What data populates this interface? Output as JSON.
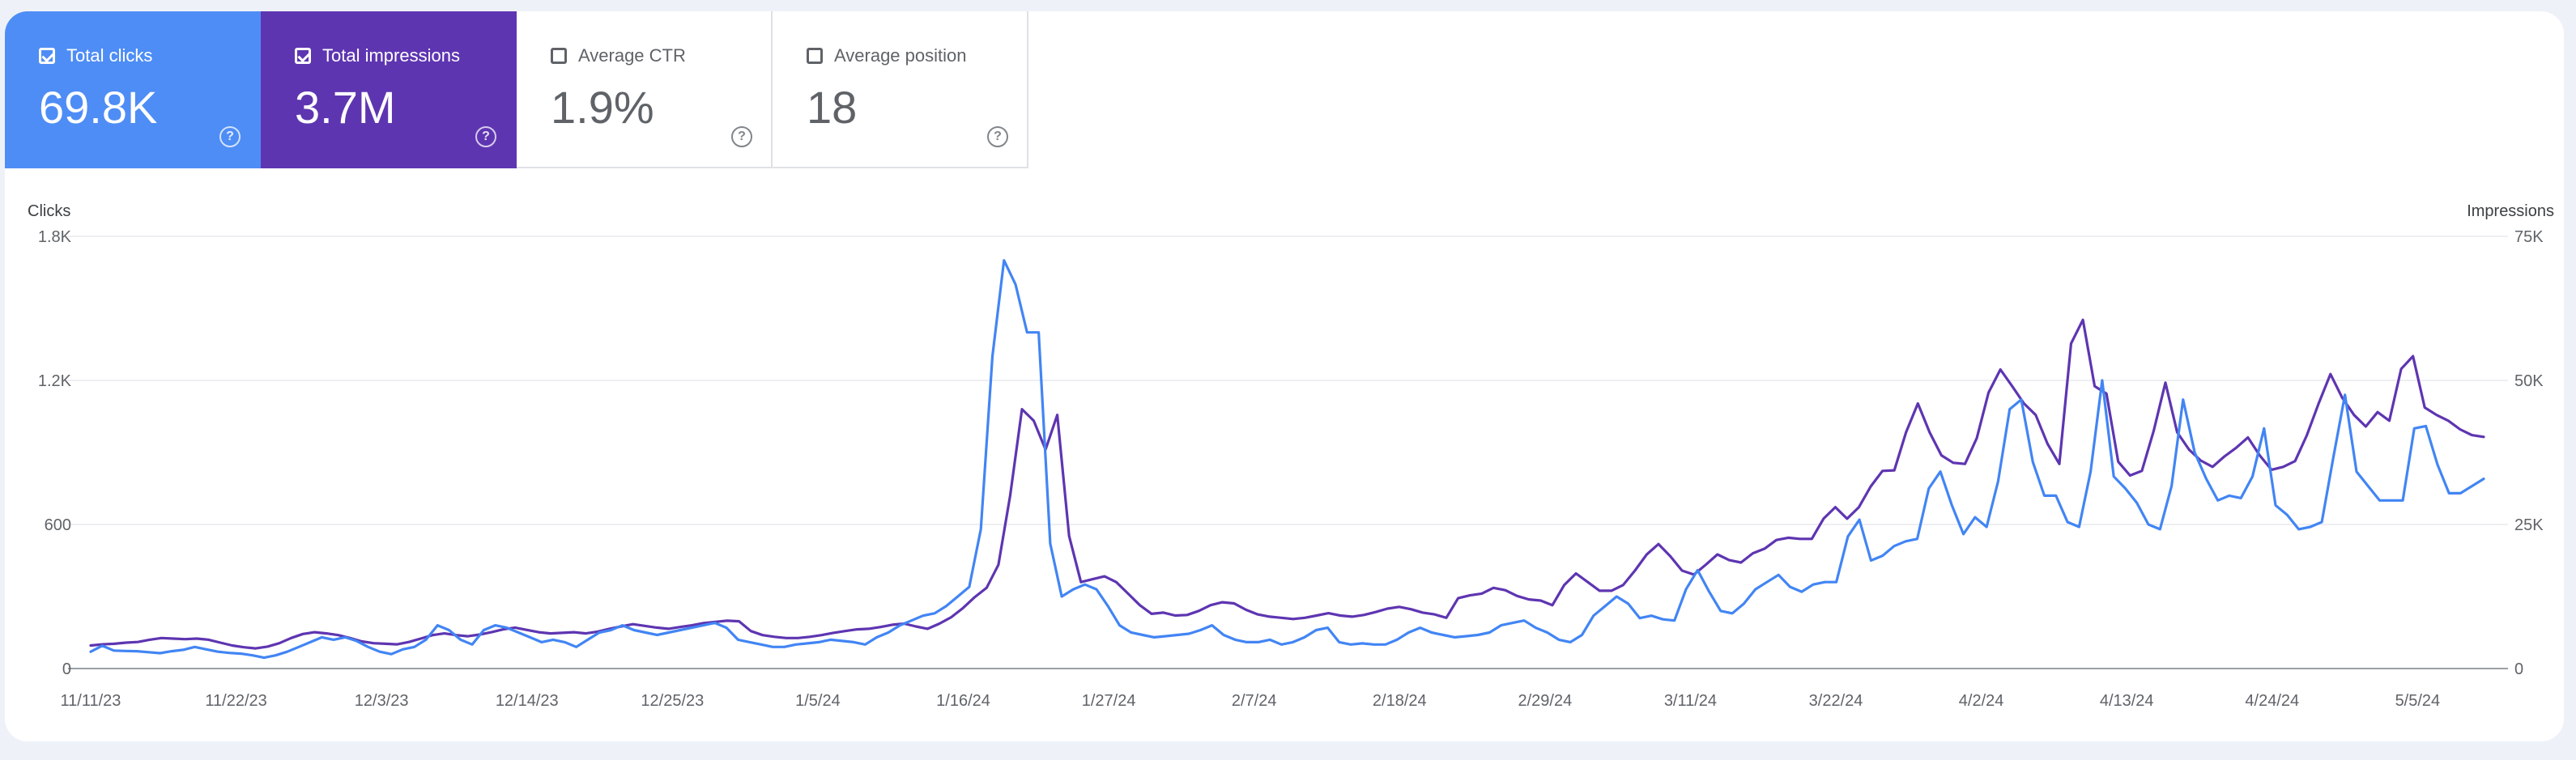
{
  "cards": [
    {
      "label": "Total clicks",
      "value": "69.8K",
      "checked": true
    },
    {
      "label": "Total impressions",
      "value": "3.7M",
      "checked": true
    },
    {
      "label": "Average CTR",
      "value": "1.9%",
      "checked": false
    },
    {
      "label": "Average position",
      "value": "18",
      "checked": false
    }
  ],
  "colors": {
    "clicks": "#4285f4",
    "impressions": "#5e35b1",
    "clicks_card": "#4e8df5",
    "impressions_card": "#5e35b1"
  },
  "help_icon_glyph": "?",
  "chart_data": {
    "type": "line",
    "y_left_label": "Clicks",
    "y_right_label": "Impressions",
    "y_left_ticks": [
      "0",
      "600",
      "1.2K",
      "1.8K"
    ],
    "y_right_ticks": [
      "0",
      "25K",
      "50K",
      "75K"
    ],
    "y_left_range": [
      0,
      1800
    ],
    "y_right_range": [
      0,
      75000
    ],
    "x_ticks": [
      "11/11/23",
      "11/22/23",
      "12/3/23",
      "12/14/23",
      "12/25/23",
      "1/5/24",
      "1/16/24",
      "1/27/24",
      "2/7/24",
      "2/18/24",
      "2/29/24",
      "3/11/24",
      "3/22/24",
      "4/2/24",
      "4/13/24",
      "4/24/24",
      "5/5/24"
    ],
    "x_range": [
      "11/11/23",
      "5/10/24"
    ],
    "grid": true,
    "series": [
      {
        "name": "Clicks",
        "axis": "left",
        "values": [
          70,
          95,
          75,
          73,
          72,
          68,
          64,
          72,
          78,
          90,
          80,
          70,
          65,
          62,
          55,
          45,
          55,
          70,
          90,
          110,
          130,
          120,
          130,
          115,
          90,
          70,
          60,
          80,
          90,
          120,
          180,
          160,
          120,
          100,
          160,
          180,
          170,
          150,
          130,
          110,
          120,
          110,
          90,
          120,
          150,
          160,
          180,
          160,
          150,
          140,
          150,
          160,
          170,
          180,
          190,
          170,
          120,
          110,
          100,
          90,
          90,
          100,
          105,
          110,
          120,
          115,
          110,
          100,
          130,
          150,
          180,
          200,
          220,
          230,
          260,
          300,
          340,
          580,
          1300,
          1700,
          1600,
          1400,
          1400,
          520,
          300,
          330,
          350,
          330,
          260,
          180,
          150,
          140,
          130,
          135,
          140,
          145,
          160,
          180,
          140,
          120,
          110,
          110,
          120,
          100,
          110,
          130,
          160,
          170,
          110,
          100,
          105,
          100,
          100,
          120,
          150,
          170,
          150,
          140,
          130,
          135,
          140,
          150,
          180,
          190,
          200,
          170,
          150,
          120,
          110,
          140,
          220,
          260,
          300,
          270,
          210,
          220,
          205,
          200,
          330,
          410,
          320,
          240,
          230,
          270,
          330,
          360,
          390,
          340,
          320,
          350,
          360,
          360,
          550,
          620,
          450,
          470,
          510,
          530,
          540,
          750,
          820,
          680,
          560,
          630,
          590,
          780,
          1080,
          1120,
          860,
          720,
          720,
          610,
          590,
          820,
          1200,
          800,
          750,
          690,
          600,
          580,
          760,
          1120,
          900,
          790,
          700,
          720,
          710,
          800,
          1000,
          680,
          640,
          580,
          590,
          610,
          880,
          1140,
          820,
          760,
          700,
          700,
          700,
          1000,
          1010,
          850,
          730,
          730,
          760,
          790
        ]
      },
      {
        "name": "Impressions",
        "axis": "right",
        "values": [
          4000,
          4200,
          4300,
          4500,
          4600,
          5000,
          5300,
          5200,
          5100,
          5200,
          5000,
          4500,
          4000,
          3700,
          3500,
          3800,
          4400,
          5300,
          6000,
          6300,
          6100,
          5800,
          5300,
          4700,
          4400,
          4300,
          4200,
          4600,
          5200,
          5800,
          6100,
          5800,
          5600,
          5900,
          6300,
          6800,
          7100,
          6700,
          6300,
          6100,
          6200,
          6300,
          6100,
          6400,
          6900,
          7300,
          7700,
          7400,
          7100,
          6900,
          7200,
          7500,
          7900,
          8100,
          8300,
          8200,
          6500,
          5800,
          5500,
          5300,
          5300,
          5500,
          5800,
          6200,
          6500,
          6800,
          6900,
          7200,
          7600,
          7800,
          7300,
          6900,
          7800,
          8900,
          10500,
          12400,
          14000,
          18000,
          30000,
          45000,
          43000,
          38000,
          44000,
          23000,
          15000,
          15500,
          16000,
          15000,
          13000,
          11000,
          9500,
          9700,
          9200,
          9300,
          10000,
          11000,
          11500,
          11300,
          10200,
          9400,
          9000,
          8800,
          8600,
          8800,
          9200,
          9600,
          9200,
          9000,
          9300,
          9800,
          10400,
          10700,
          10300,
          9700,
          9400,
          8800,
          12200,
          12700,
          13000,
          14000,
          13600,
          12600,
          12000,
          11800,
          11000,
          14500,
          16500,
          15000,
          13500,
          13500,
          14500,
          17000,
          19800,
          21600,
          19500,
          17000,
          16300,
          18000,
          19800,
          18800,
          18400,
          20000,
          20800,
          22300,
          22700,
          22500,
          22500,
          26000,
          28000,
          26000,
          28000,
          31600,
          34300,
          34400,
          41000,
          46000,
          41000,
          37000,
          35700,
          35500,
          40000,
          47900,
          51900,
          49000,
          46000,
          44000,
          39000,
          35500,
          56400,
          60500,
          49000,
          47700,
          35900,
          33500,
          34300,
          41200,
          49600,
          41000,
          38000,
          36100,
          35000,
          36800,
          38300,
          40100,
          37000,
          34500,
          35000,
          36000,
          40500,
          46000,
          51100,
          47000,
          44000,
          42000,
          44500,
          43000,
          52000,
          54200,
          45300,
          44000,
          43000,
          41500,
          40500,
          40200
        ]
      }
    ]
  }
}
